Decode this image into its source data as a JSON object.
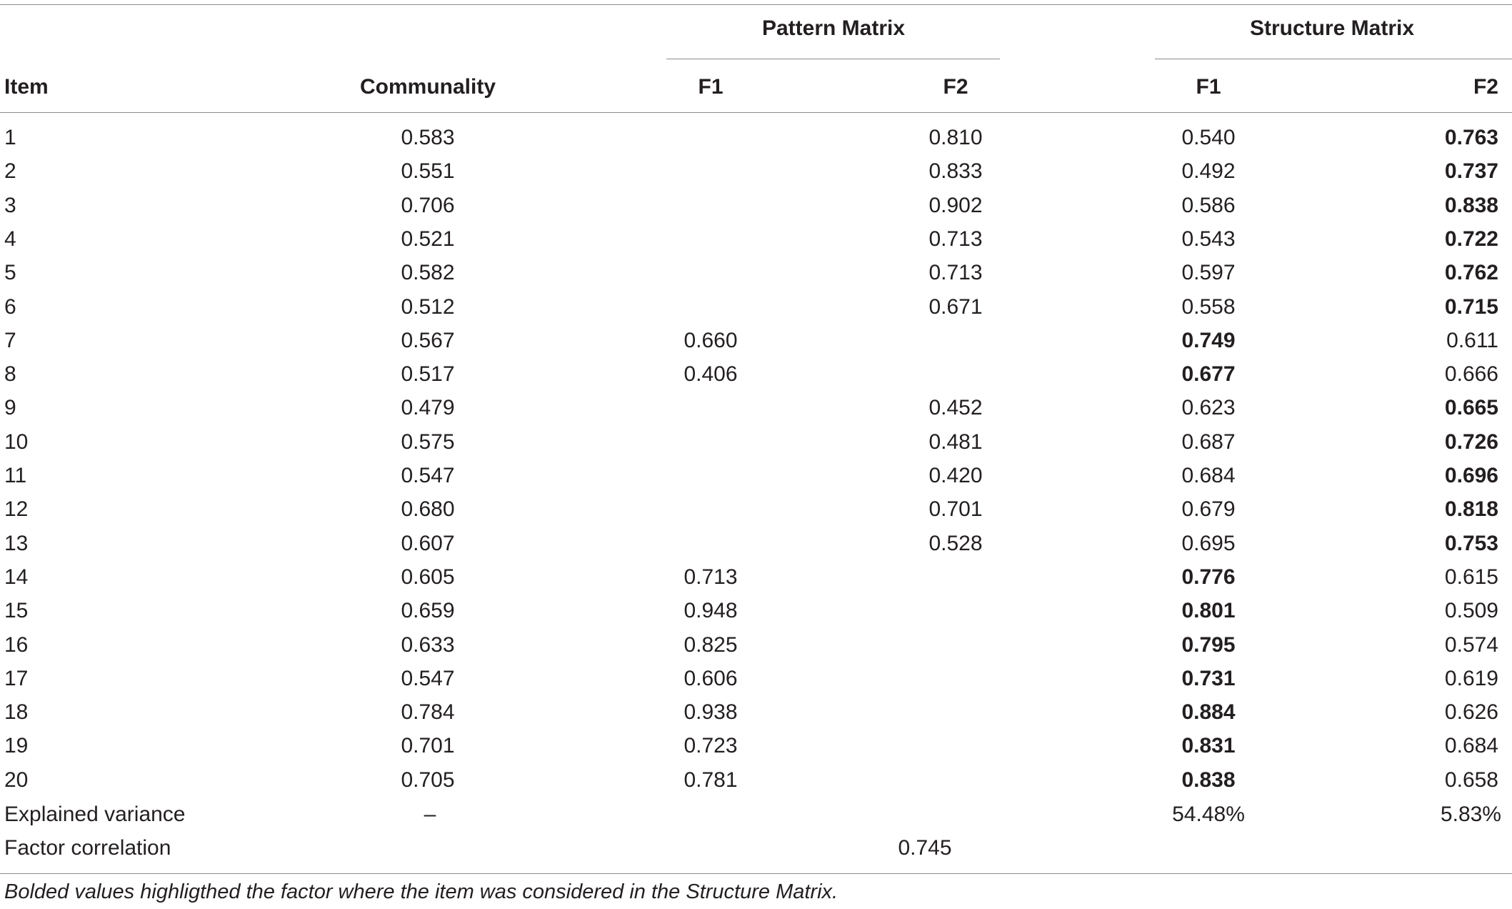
{
  "table": {
    "group_headers": {
      "pattern": "Pattern Matrix",
      "structure": "Structure Matrix"
    },
    "columns": {
      "item": "Item",
      "communality": "Communality",
      "pattern_f1": "F1",
      "pattern_f2": "F2",
      "structure_f1": "F1",
      "structure_f2": "F2"
    },
    "rows": [
      {
        "item": "1",
        "communality": "0.583",
        "pf1": "",
        "pf2": "0.810",
        "sf1": "0.540",
        "sf2": "0.763",
        "bold": "sf2"
      },
      {
        "item": "2",
        "communality": "0.551",
        "pf1": "",
        "pf2": "0.833",
        "sf1": "0.492",
        "sf2": "0.737",
        "bold": "sf2"
      },
      {
        "item": "3",
        "communality": "0.706",
        "pf1": "",
        "pf2": "0.902",
        "sf1": "0.586",
        "sf2": "0.838",
        "bold": "sf2"
      },
      {
        "item": "4",
        "communality": "0.521",
        "pf1": "",
        "pf2": "0.713",
        "sf1": "0.543",
        "sf2": "0.722",
        "bold": "sf2"
      },
      {
        "item": "5",
        "communality": "0.582",
        "pf1": "",
        "pf2": "0.713",
        "sf1": "0.597",
        "sf2": "0.762",
        "bold": "sf2"
      },
      {
        "item": "6",
        "communality": "0.512",
        "pf1": "",
        "pf2": "0.671",
        "sf1": "0.558",
        "sf2": "0.715",
        "bold": "sf2"
      },
      {
        "item": "7",
        "communality": "0.567",
        "pf1": "0.660",
        "pf2": "",
        "sf1": "0.749",
        "sf2": "0.611",
        "bold": "sf1"
      },
      {
        "item": "8",
        "communality": "0.517",
        "pf1": "0.406",
        "pf2": "",
        "sf1": "0.677",
        "sf2": "0.666",
        "bold": "sf1"
      },
      {
        "item": "9",
        "communality": "0.479",
        "pf1": "",
        "pf2": "0.452",
        "sf1": "0.623",
        "sf2": "0.665",
        "bold": "sf2"
      },
      {
        "item": "10",
        "communality": "0.575",
        "pf1": "",
        "pf2": "0.481",
        "sf1": "0.687",
        "sf2": "0.726",
        "bold": "sf2"
      },
      {
        "item": "11",
        "communality": "0.547",
        "pf1": "",
        "pf2": "0.420",
        "sf1": "0.684",
        "sf2": "0.696",
        "bold": "sf2"
      },
      {
        "item": "12",
        "communality": "0.680",
        "pf1": "",
        "pf2": "0.701",
        "sf1": "0.679",
        "sf2": "0.818",
        "bold": "sf2"
      },
      {
        "item": "13",
        "communality": "0.607",
        "pf1": "",
        "pf2": "0.528",
        "sf1": "0.695",
        "sf2": "0.753",
        "bold": "sf2"
      },
      {
        "item": "14",
        "communality": "0.605",
        "pf1": "0.713",
        "pf2": "",
        "sf1": "0.776",
        "sf2": "0.615",
        "bold": "sf1"
      },
      {
        "item": "15",
        "communality": "0.659",
        "pf1": "0.948",
        "pf2": "",
        "sf1": "0.801",
        "sf2": "0.509",
        "bold": "sf1"
      },
      {
        "item": "16",
        "communality": "0.633",
        "pf1": "0.825",
        "pf2": "",
        "sf1": "0.795",
        "sf2": "0.574",
        "bold": "sf1"
      },
      {
        "item": "17",
        "communality": "0.547",
        "pf1": "0.606",
        "pf2": "",
        "sf1": "0.731",
        "sf2": "0.619",
        "bold": "sf1"
      },
      {
        "item": "18",
        "communality": "0.784",
        "pf1": "0.938",
        "pf2": "",
        "sf1": "0.884",
        "sf2": "0.626",
        "bold": "sf1"
      },
      {
        "item": "19",
        "communality": "0.701",
        "pf1": "0.723",
        "pf2": "",
        "sf1": "0.831",
        "sf2": "0.684",
        "bold": "sf1"
      },
      {
        "item": "20",
        "communality": "0.705",
        "pf1": "0.781",
        "pf2": "",
        "sf1": "0.838",
        "sf2": "0.658",
        "bold": "sf1"
      }
    ],
    "explained_variance": {
      "label": "Explained variance",
      "communality": "–",
      "sf1": "54.48%",
      "sf2": "5.83%"
    },
    "factor_correlation": {
      "label": "Factor correlation",
      "value": "0.745"
    }
  },
  "footnote": "Bolded values highligthed the factor where the item was considered in the Structure Matrix."
}
